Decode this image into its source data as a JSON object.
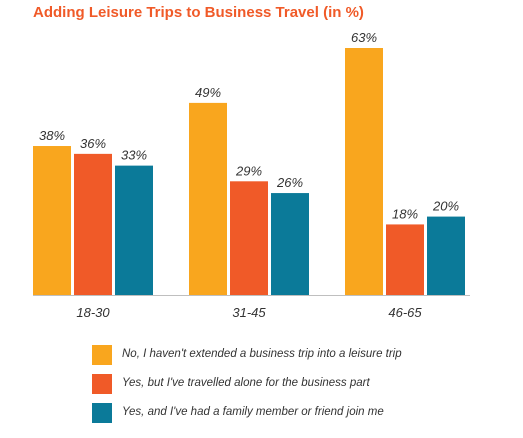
{
  "chart_data": {
    "type": "bar",
    "title": "Adding Leisure Trips to Business Travel (in %)",
    "categories": [
      "18-30",
      "31-45",
      "46-65"
    ],
    "series": [
      {
        "name": "No, I haven't extended a business trip into a leisure trip",
        "values": [
          38,
          49,
          63
        ],
        "labels": [
          "38%",
          "49%",
          "63%"
        ],
        "color": "#f9a61e"
      },
      {
        "name": "Yes, but I've travelled alone for the business part",
        "values": [
          36,
          29,
          18
        ],
        "labels": [
          "36%",
          "29%",
          "18%"
        ],
        "color": "#f05a28"
      },
      {
        "name": "Yes, and I've had a family member or friend join me",
        "values": [
          33,
          26,
          20
        ],
        "labels": [
          "33%",
          "26%",
          "20%"
        ],
        "color": "#0b7a99"
      }
    ],
    "ylim": [
      0,
      63
    ],
    "grid": false,
    "legend_position": "bottom"
  },
  "colors": {
    "title": "#f05a28",
    "baseline": "#bfbfbf",
    "label_text": "#333333"
  }
}
